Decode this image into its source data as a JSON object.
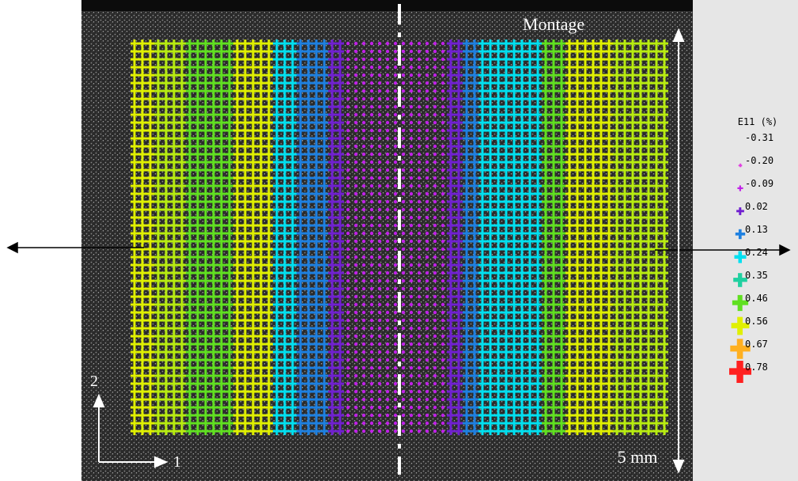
{
  "title": "Montage",
  "legend": {
    "title": "E11 (%)",
    "entries": [
      {
        "label": "-0.31",
        "color": "#202020"
      },
      {
        "label": "-0.20",
        "color": "#e040e0"
      },
      {
        "label": "-0.09",
        "color": "#c020e8"
      },
      {
        "label": "0.02",
        "color": "#7020d0"
      },
      {
        "label": "0.13",
        "color": "#1e80e0"
      },
      {
        "label": "0.24",
        "color": "#00e0f0"
      },
      {
        "label": "0.35",
        "color": "#20d0a0"
      },
      {
        "label": "0.46",
        "color": "#60e020"
      },
      {
        "label": "0.56",
        "color": "#e0f000"
      },
      {
        "label": "0.67",
        "color": "#ffb020"
      },
      {
        "label": "0.78",
        "color": "#ff2020"
      }
    ]
  },
  "scale_label": "5 mm",
  "axes": {
    "vertical": "2",
    "horizontal": "1"
  }
}
